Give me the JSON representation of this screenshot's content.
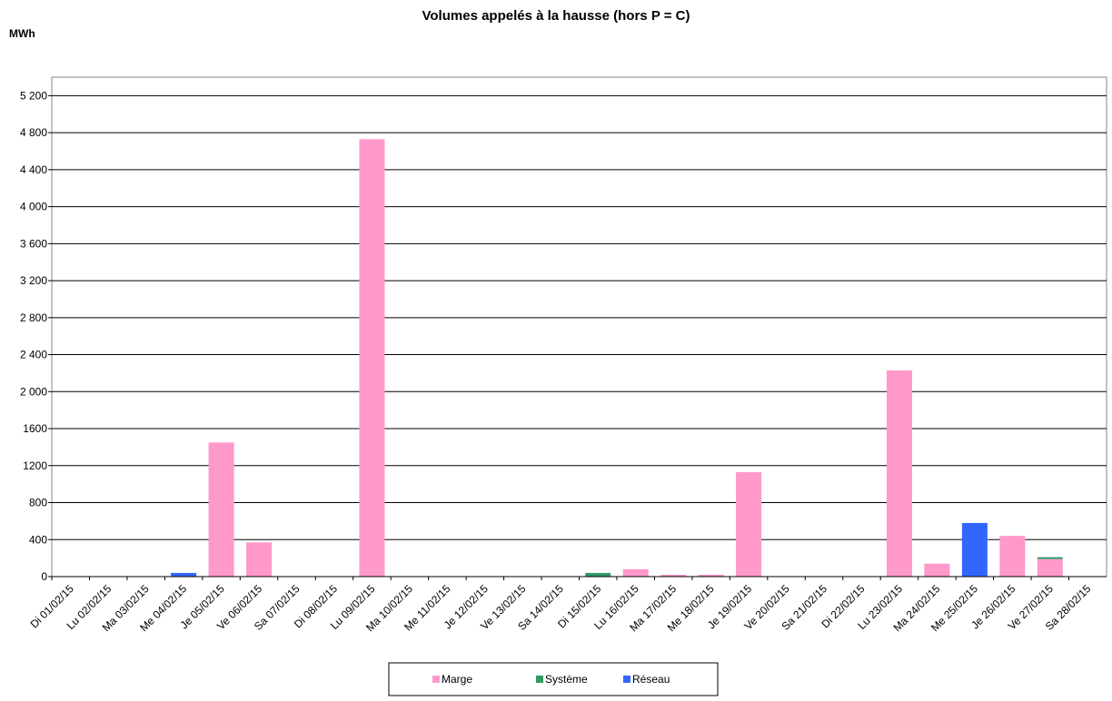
{
  "chart_data": {
    "type": "stacked_bar",
    "title": "Volumes appelés à la hausse (hors P = C)",
    "y_label": "MWh",
    "categories": [
      "Di 01/02/15",
      "Lu 02/02/15",
      "Ma 03/02/15",
      "Me 04/02/15",
      "Je 05/02/15",
      "Ve 06/02/15",
      "Sa 07/02/15",
      "Di 08/02/15",
      "Lu 09/02/15",
      "Ma 10/02/15",
      "Me 11/02/15",
      "Je 12/02/15",
      "Ve 13/02/15",
      "Sa 14/02/15",
      "Di 15/02/15",
      "Lu 16/02/15",
      "Ma 17/02/15",
      "Me 18/02/15",
      "Je 19/02/15",
      "Ve 20/02/15",
      "Sa 21/02/15",
      "Di 22/02/15",
      "Lu 23/02/15",
      "Ma 24/02/15",
      "Me 25/02/15",
      "Je 26/02/15",
      "Ve 27/02/15",
      "Sa 28/02/15"
    ],
    "series": [
      {
        "name": "Marge",
        "color": "#ff99cc",
        "values": [
          0,
          0,
          0,
          0,
          1450,
          370,
          0,
          0,
          4730,
          0,
          0,
          0,
          0,
          0,
          0,
          80,
          20,
          20,
          1130,
          0,
          0,
          0,
          2230,
          140,
          0,
          440,
          190,
          0
        ]
      },
      {
        "name": "Système",
        "color": "#339966",
        "values": [
          0,
          0,
          0,
          0,
          0,
          0,
          0,
          0,
          0,
          0,
          0,
          0,
          0,
          0,
          40,
          0,
          0,
          0,
          0,
          0,
          0,
          0,
          0,
          0,
          0,
          0,
          20,
          0
        ]
      },
      {
        "name": "Réseau",
        "color": "#3366ff",
        "values": [
          0,
          0,
          0,
          40,
          0,
          0,
          0,
          0,
          0,
          0,
          0,
          0,
          0,
          0,
          0,
          0,
          0,
          0,
          0,
          0,
          0,
          0,
          0,
          0,
          580,
          0,
          0,
          0
        ]
      }
    ],
    "ylim": [
      0,
      5400
    ],
    "yticks": [
      0,
      400,
      800,
      1200,
      1600,
      {
        "value": 2000,
        "label": "2 000"
      },
      {
        "value": 2400,
        "label": "2 400"
      },
      {
        "value": 2800,
        "label": "2 800"
      },
      {
        "value": 3200,
        "label": "3 200"
      },
      {
        "value": 3600,
        "label": "3 600"
      },
      {
        "value": 4000,
        "label": "4 000"
      },
      {
        "value": 4400,
        "label": "4 400"
      },
      {
        "value": 4800,
        "label": "4 800"
      },
      {
        "value": 5200,
        "label": "5 200"
      }
    ],
    "grid": true,
    "legend": "bottom"
  }
}
